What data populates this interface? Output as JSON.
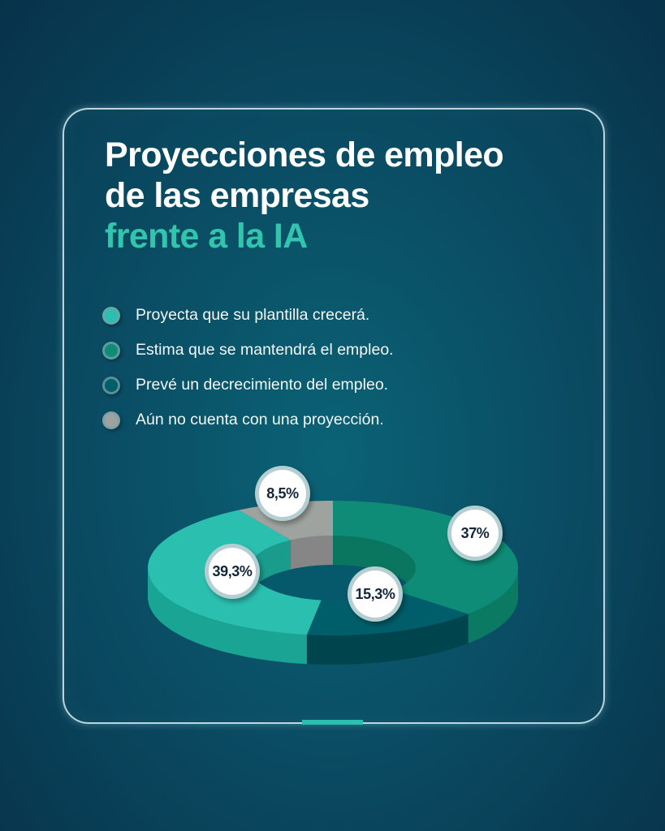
{
  "title": {
    "line1": "Proyecciones de empleo",
    "line2": "de las empresas",
    "line3": "frente a la IA"
  },
  "colors": {
    "accent": "#33c4ad",
    "card_border": "#dcf0f5"
  },
  "chart_data": {
    "type": "pie",
    "style": "3d-donut",
    "legend_position": "top-left",
    "series": [
      {
        "name": "Proyecta que su plantilla crecerá.",
        "value": 39.3,
        "label": "39,3%",
        "color": "#2bbfb0",
        "side": "#1aa493",
        "inner": "#1a9c8c"
      },
      {
        "name": "Estima que se mantendrá el empleo.",
        "value": 37,
        "label": "37%",
        "color": "#0f8c77",
        "side": "#0a7a62",
        "inner": "#0a7660"
      },
      {
        "name": "Prevé un decrecimiento del empleo.",
        "value": 15.3,
        "label": "15,3%",
        "color": "#005e6b",
        "side": "#00444e",
        "inner": "#004a55"
      },
      {
        "name": "Aún no cuenta con una proyección.",
        "value": 8.5,
        "label": "8,5%",
        "color": "#9ea39f",
        "side": "#7f8582",
        "inner": "#868686"
      }
    ],
    "clockwise_order_from_top": [
      1,
      2,
      0,
      3
    ]
  }
}
